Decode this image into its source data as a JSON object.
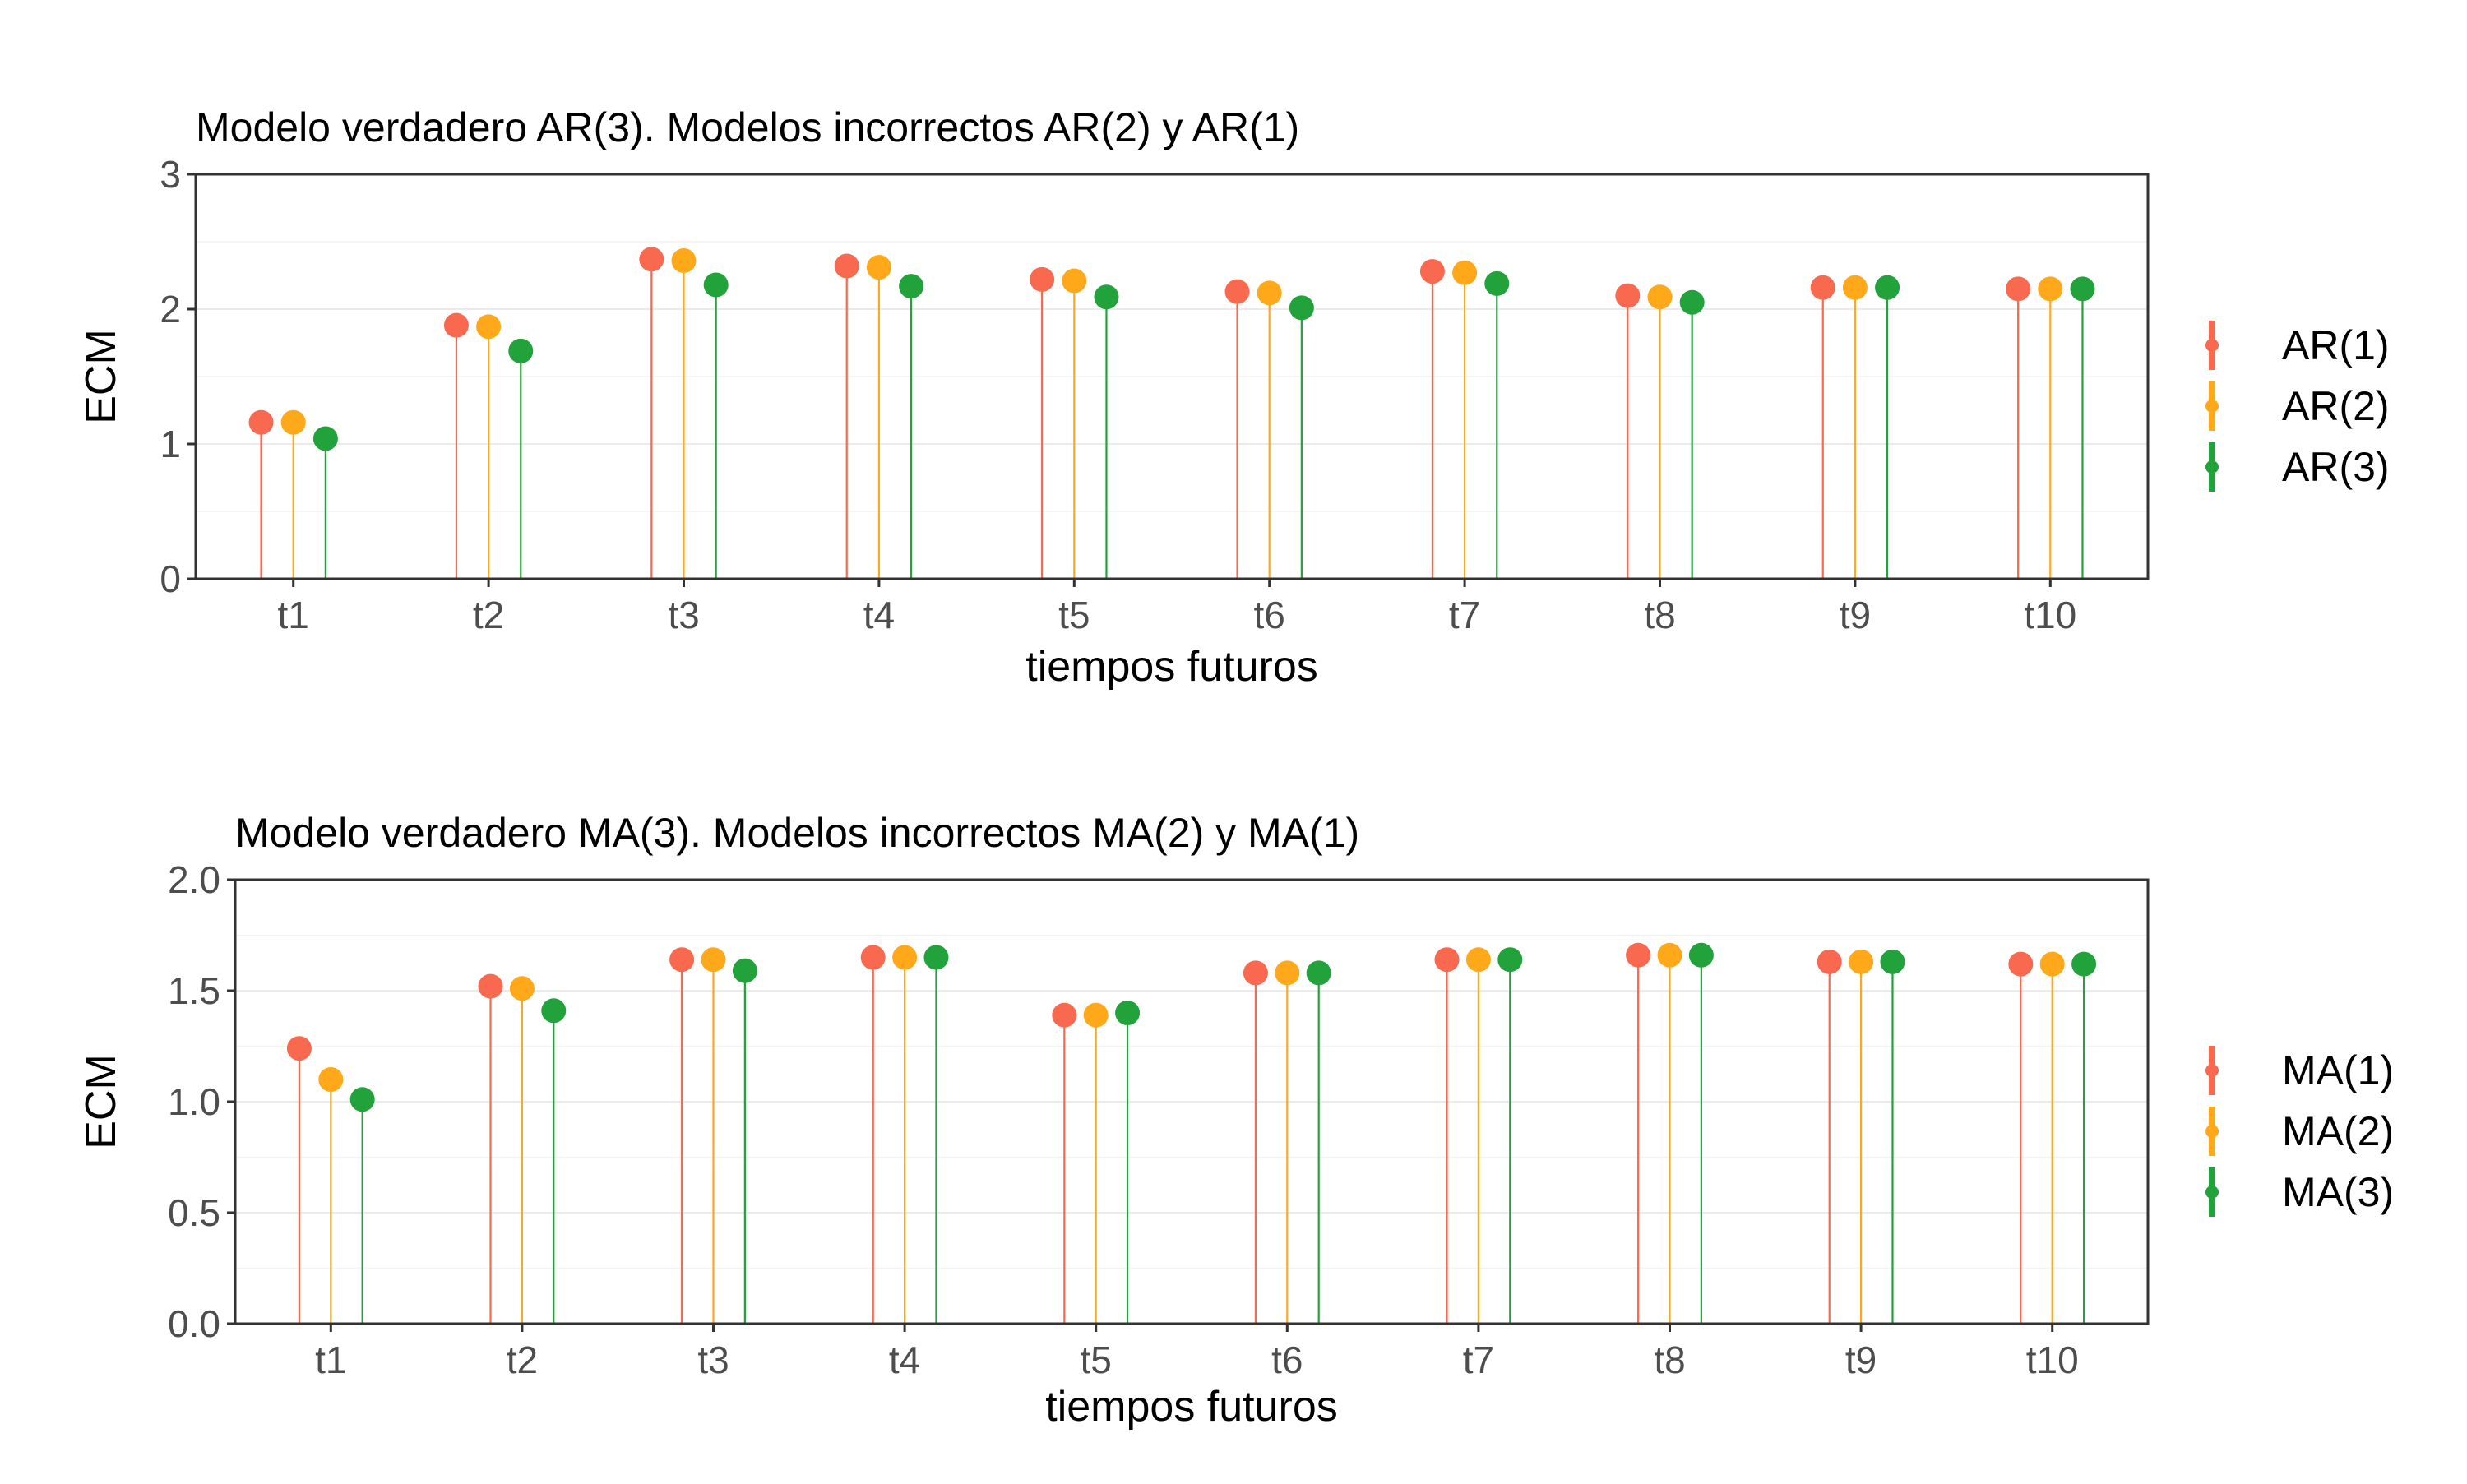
{
  "chart_data": [
    {
      "type": "lollipop",
      "title": "Modelo verdadero AR(3). Modelos incorrectos AR(2) y AR(1)",
      "xlabel": "tiempos futuros",
      "ylabel": "ECM",
      "categories": [
        "t1",
        "t2",
        "t3",
        "t4",
        "t5",
        "t6",
        "t7",
        "t8",
        "t9",
        "t10"
      ],
      "ylim": [
        0,
        3
      ],
      "yticks": [
        0,
        1,
        2,
        3
      ],
      "ytick_labels": [
        "0",
        "1",
        "2",
        "3"
      ],
      "grid": true,
      "legend_position": "right",
      "series": [
        {
          "name": "AR(1)",
          "color": "#F8694F",
          "values": [
            1.16,
            1.88,
            2.37,
            2.32,
            2.22,
            2.13,
            2.28,
            2.1,
            2.16,
            2.15
          ]
        },
        {
          "name": "AR(2)",
          "color": "#FFA81A",
          "values": [
            1.16,
            1.87,
            2.36,
            2.31,
            2.21,
            2.12,
            2.27,
            2.09,
            2.16,
            2.15
          ]
        },
        {
          "name": "AR(3)",
          "color": "#22A23A",
          "values": [
            1.04,
            1.69,
            2.18,
            2.17,
            2.09,
            2.01,
            2.19,
            2.05,
            2.16,
            2.15
          ]
        }
      ]
    },
    {
      "type": "lollipop",
      "title": "Modelo verdadero MA(3). Modelos incorrectos MA(2) y MA(1)",
      "xlabel": "tiempos futuros",
      "ylabel": "ECM",
      "categories": [
        "t1",
        "t2",
        "t3",
        "t4",
        "t5",
        "t6",
        "t7",
        "t8",
        "t9",
        "t10"
      ],
      "ylim": [
        0,
        2
      ],
      "yticks": [
        0,
        0.5,
        1,
        1.5,
        2
      ],
      "ytick_labels": [
        "0.0",
        "0.5",
        "1.0",
        "1.5",
        "2.0"
      ],
      "grid": true,
      "legend_position": "right",
      "series": [
        {
          "name": "MA(1)",
          "color": "#F8694F",
          "values": [
            1.24,
            1.52,
            1.64,
            1.65,
            1.39,
            1.58,
            1.64,
            1.66,
            1.63,
            1.62
          ]
        },
        {
          "name": "MA(2)",
          "color": "#FFA81A",
          "values": [
            1.1,
            1.51,
            1.64,
            1.65,
            1.39,
            1.58,
            1.64,
            1.66,
            1.63,
            1.62
          ]
        },
        {
          "name": "MA(3)",
          "color": "#22A23A",
          "values": [
            1.01,
            1.41,
            1.59,
            1.65,
            1.4,
            1.58,
            1.64,
            1.66,
            1.63,
            1.62
          ]
        }
      ]
    }
  ]
}
